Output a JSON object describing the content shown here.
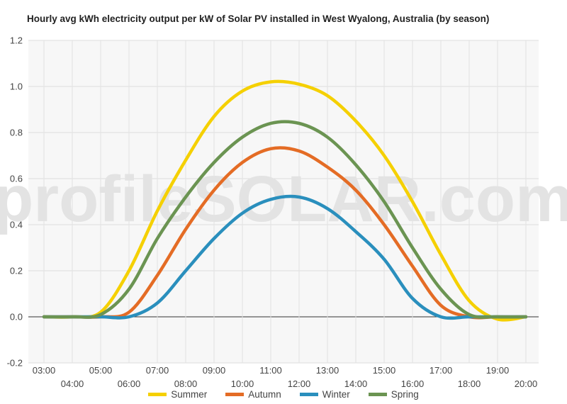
{
  "chart_data": {
    "type": "line",
    "title": "Hourly avg kWh electricity output per kW of Solar PV installed in West Wyalong, Australia (by season)",
    "watermark": "profileSOLAR.com",
    "x": [
      "03:00",
      "04:00",
      "05:00",
      "06:00",
      "07:00",
      "08:00",
      "09:00",
      "10:00",
      "11:00",
      "12:00",
      "13:00",
      "14:00",
      "15:00",
      "16:00",
      "17:00",
      "18:00",
      "19:00",
      "20:00"
    ],
    "ylim": [
      -0.2,
      1.2
    ],
    "yticks": [
      "-0.2",
      "0.0",
      "0.2",
      "0.4",
      "0.6",
      "0.8",
      "1.0",
      "1.2"
    ],
    "grid": true,
    "legend_position": "bottom",
    "series": [
      {
        "name": "Summer",
        "color": "#f5d000",
        "values": [
          0.0,
          0.0,
          0.02,
          0.2,
          0.46,
          0.68,
          0.87,
          0.98,
          1.02,
          1.01,
          0.96,
          0.85,
          0.7,
          0.5,
          0.27,
          0.07,
          -0.01,
          0.0
        ]
      },
      {
        "name": "Autumn",
        "color": "#e46c25",
        "values": [
          0.0,
          0.0,
          0.0,
          0.02,
          0.18,
          0.38,
          0.55,
          0.67,
          0.73,
          0.72,
          0.65,
          0.55,
          0.4,
          0.22,
          0.05,
          0.0,
          0.0,
          0.0
        ]
      },
      {
        "name": "Winter",
        "color": "#2a8fbd",
        "values": [
          0.0,
          0.0,
          0.0,
          0.0,
          0.06,
          0.2,
          0.34,
          0.45,
          0.51,
          0.52,
          0.47,
          0.37,
          0.25,
          0.08,
          0.0,
          0.0,
          0.0,
          0.0
        ]
      },
      {
        "name": "Spring",
        "color": "#6b9452",
        "values": [
          0.0,
          0.0,
          0.01,
          0.12,
          0.34,
          0.52,
          0.67,
          0.78,
          0.84,
          0.84,
          0.78,
          0.66,
          0.5,
          0.3,
          0.12,
          0.01,
          0.0,
          0.0
        ]
      }
    ]
  }
}
